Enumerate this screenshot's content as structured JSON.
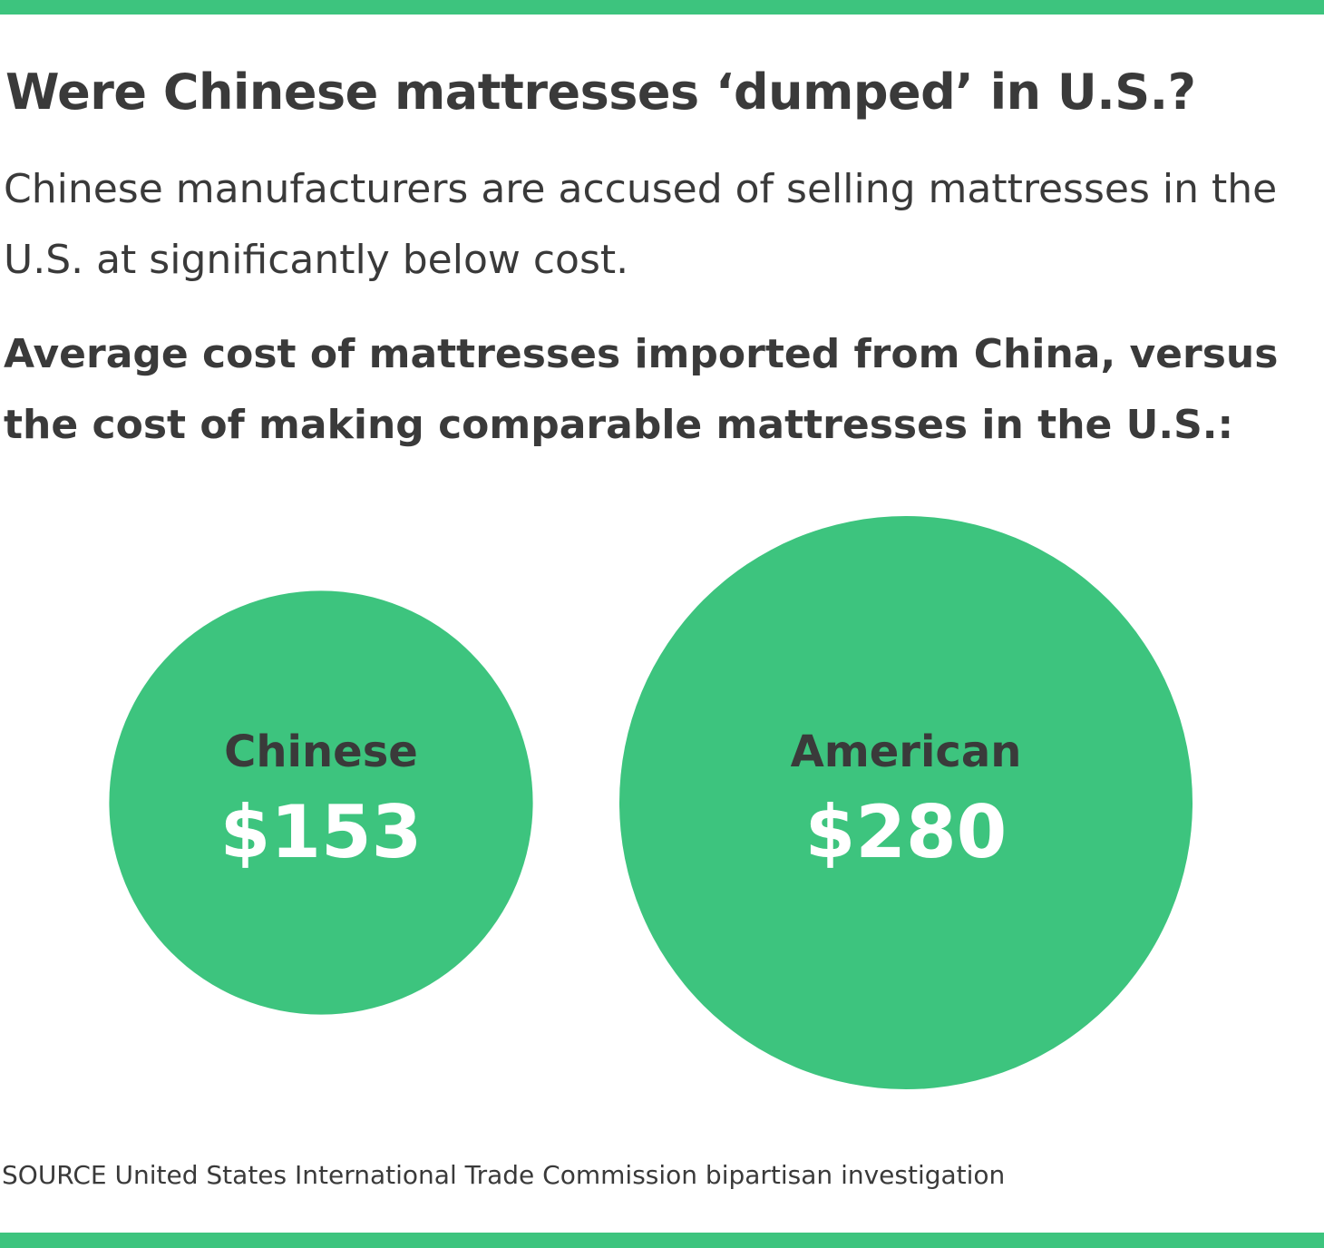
{
  "header": {
    "title": "Were Chinese mattresses ‘dumped’ in U.S.?",
    "subtitle": "Chinese manufacturers are accused of selling mattresses in the U.S. at significantly below cost.",
    "chart_heading": "Average cost of mattresses imported from China, versus the cost of making comparable mattresses in the U.S.:"
  },
  "footer": {
    "source": "SOURCE United States International Trade Commission bipartisan investigation"
  },
  "colors": {
    "accent": "#3dc47e",
    "text": "#3a3a3a",
    "value_text": "#ffffff"
  },
  "chart_data": {
    "type": "bubble",
    "title": "Average cost of mattresses imported from China, versus the cost of making comparable mattresses in the U.S.:",
    "categories": [
      "Chinese",
      "American"
    ],
    "values": [
      153,
      280
    ],
    "value_labels": [
      "$153",
      "$280"
    ],
    "unit": "USD",
    "encoding": "circle area proportional to value"
  }
}
